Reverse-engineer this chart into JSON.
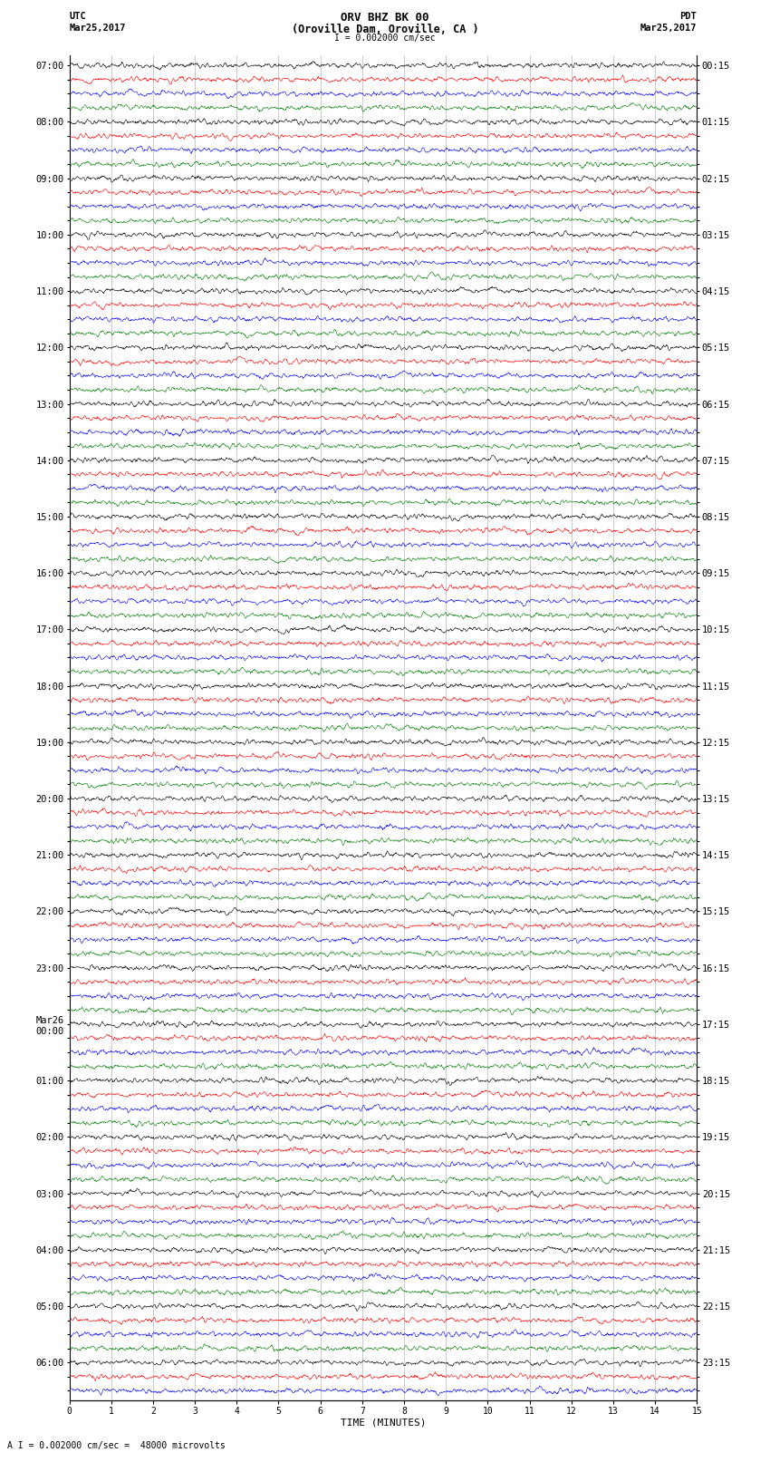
{
  "title_line1": "ORV BHZ BK 00",
  "title_line2": "(Oroville Dam, Oroville, CA )",
  "scale_text": "I = 0.002000 cm/sec",
  "bottom_text": "A I = 0.002000 cm/sec =  48000 microvolts",
  "utc_label": "UTC",
  "utc_date": "Mar25,2017",
  "pdt_label": "PDT",
  "pdt_date": "Mar25,2017",
  "xlabel": "TIME (MINUTES)",
  "xlim": [
    0,
    15
  ],
  "xticks": [
    0,
    1,
    2,
    3,
    4,
    5,
    6,
    7,
    8,
    9,
    10,
    11,
    12,
    13,
    14,
    15
  ],
  "num_traces": 95,
  "trace_colors": [
    "black",
    "red",
    "blue",
    "green"
  ],
  "left_times": [
    "07:00",
    "",
    "",
    "",
    "08:00",
    "",
    "",
    "",
    "09:00",
    "",
    "",
    "",
    "10:00",
    "",
    "",
    "",
    "11:00",
    "",
    "",
    "",
    "12:00",
    "",
    "",
    "",
    "13:00",
    "",
    "",
    "",
    "14:00",
    "",
    "",
    "",
    "15:00",
    "",
    "",
    "",
    "16:00",
    "",
    "",
    "",
    "17:00",
    "",
    "",
    "",
    "18:00",
    "",
    "",
    "",
    "19:00",
    "",
    "",
    "",
    "20:00",
    "",
    "",
    "",
    "21:00",
    "",
    "",
    "",
    "22:00",
    "",
    "",
    "",
    "23:00",
    "",
    "",
    "",
    "Mar26\n00:00",
    "",
    "",
    "",
    "01:00",
    "",
    "",
    "",
    "02:00",
    "",
    "",
    "",
    "03:00",
    "",
    "",
    "",
    "04:00",
    "",
    "",
    "",
    "05:00",
    "",
    "",
    "",
    "06:00",
    "",
    ""
  ],
  "right_times": [
    "00:15",
    "",
    "",
    "",
    "01:15",
    "",
    "",
    "",
    "02:15",
    "",
    "",
    "",
    "03:15",
    "",
    "",
    "",
    "04:15",
    "",
    "",
    "",
    "05:15",
    "",
    "",
    "",
    "06:15",
    "",
    "",
    "",
    "07:15",
    "",
    "",
    "",
    "08:15",
    "",
    "",
    "",
    "09:15",
    "",
    "",
    "",
    "10:15",
    "",
    "",
    "",
    "11:15",
    "",
    "",
    "",
    "12:15",
    "",
    "",
    "",
    "13:15",
    "",
    "",
    "",
    "14:15",
    "",
    "",
    "",
    "15:15",
    "",
    "",
    "",
    "16:15",
    "",
    "",
    "",
    "17:15",
    "",
    "",
    "",
    "18:15",
    "",
    "",
    "",
    "19:15",
    "",
    "",
    "",
    "20:15",
    "",
    "",
    "",
    "21:15",
    "",
    "",
    "",
    "22:15",
    "",
    "",
    "",
    "23:15",
    "",
    ""
  ],
  "bg_color": "white",
  "trace_amplitude": 0.35,
  "noise_scale": 0.08,
  "grid_color": "#888888",
  "grid_alpha": 0.6,
  "font_size_title": 9,
  "font_size_labels": 7.5,
  "font_size_ticks": 7,
  "font_size_yticks": 7.5
}
